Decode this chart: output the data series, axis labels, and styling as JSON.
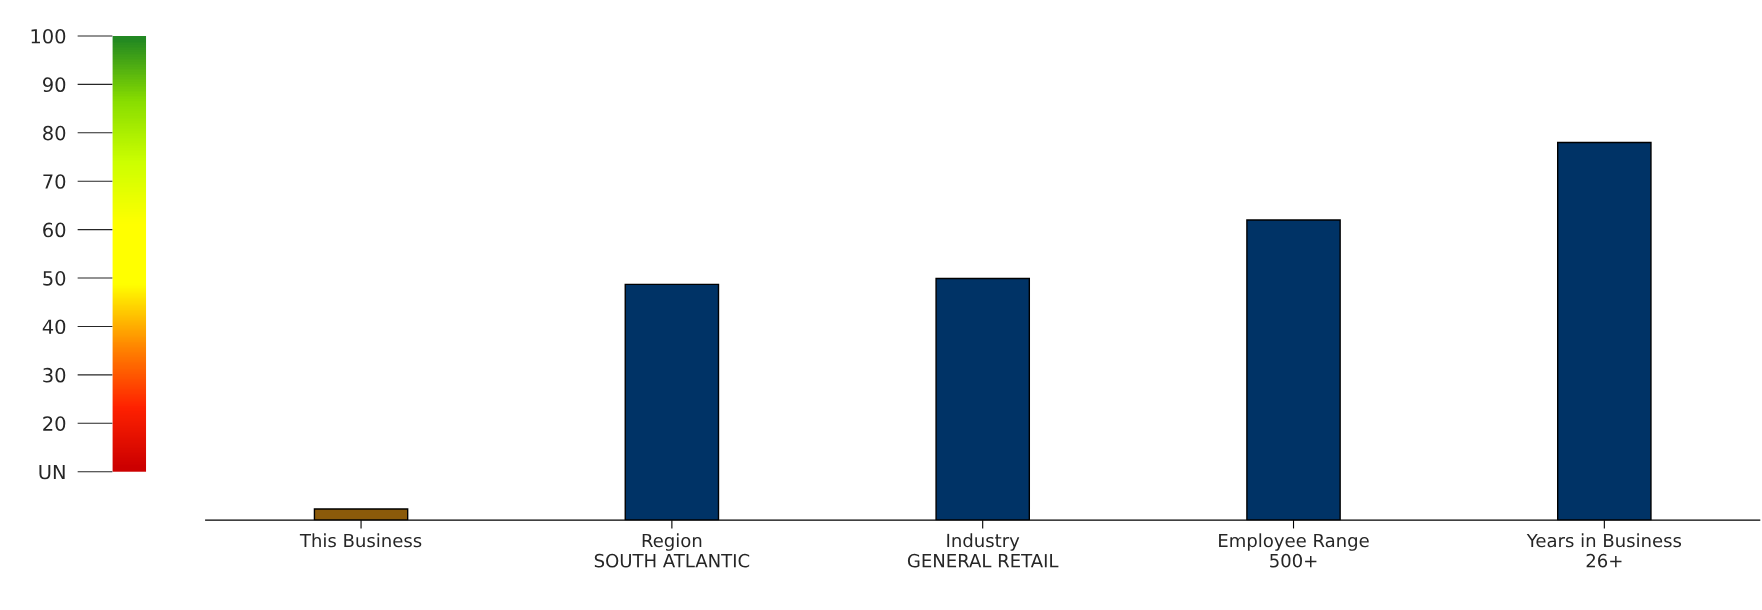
{
  "chart_data": {
    "type": "bar",
    "categories": [
      "This Business",
      "Region\nSOUTH ATLANTIC",
      "Industry\nGENERAL RETAIL",
      "Employee Range\n500+",
      "Years in Business\n26+"
    ],
    "values": [
      2.3,
      48.7,
      49.9,
      62,
      78
    ],
    "colors": [
      "#8b5a0a",
      "#003366",
      "#003366",
      "#003366",
      "#003366"
    ],
    "ylim": [
      0,
      100
    ],
    "yticks": [
      100,
      90,
      80,
      70,
      60,
      50,
      40,
      30,
      20,
      {
        "value": 10,
        "label": "UN"
      }
    ]
  }
}
